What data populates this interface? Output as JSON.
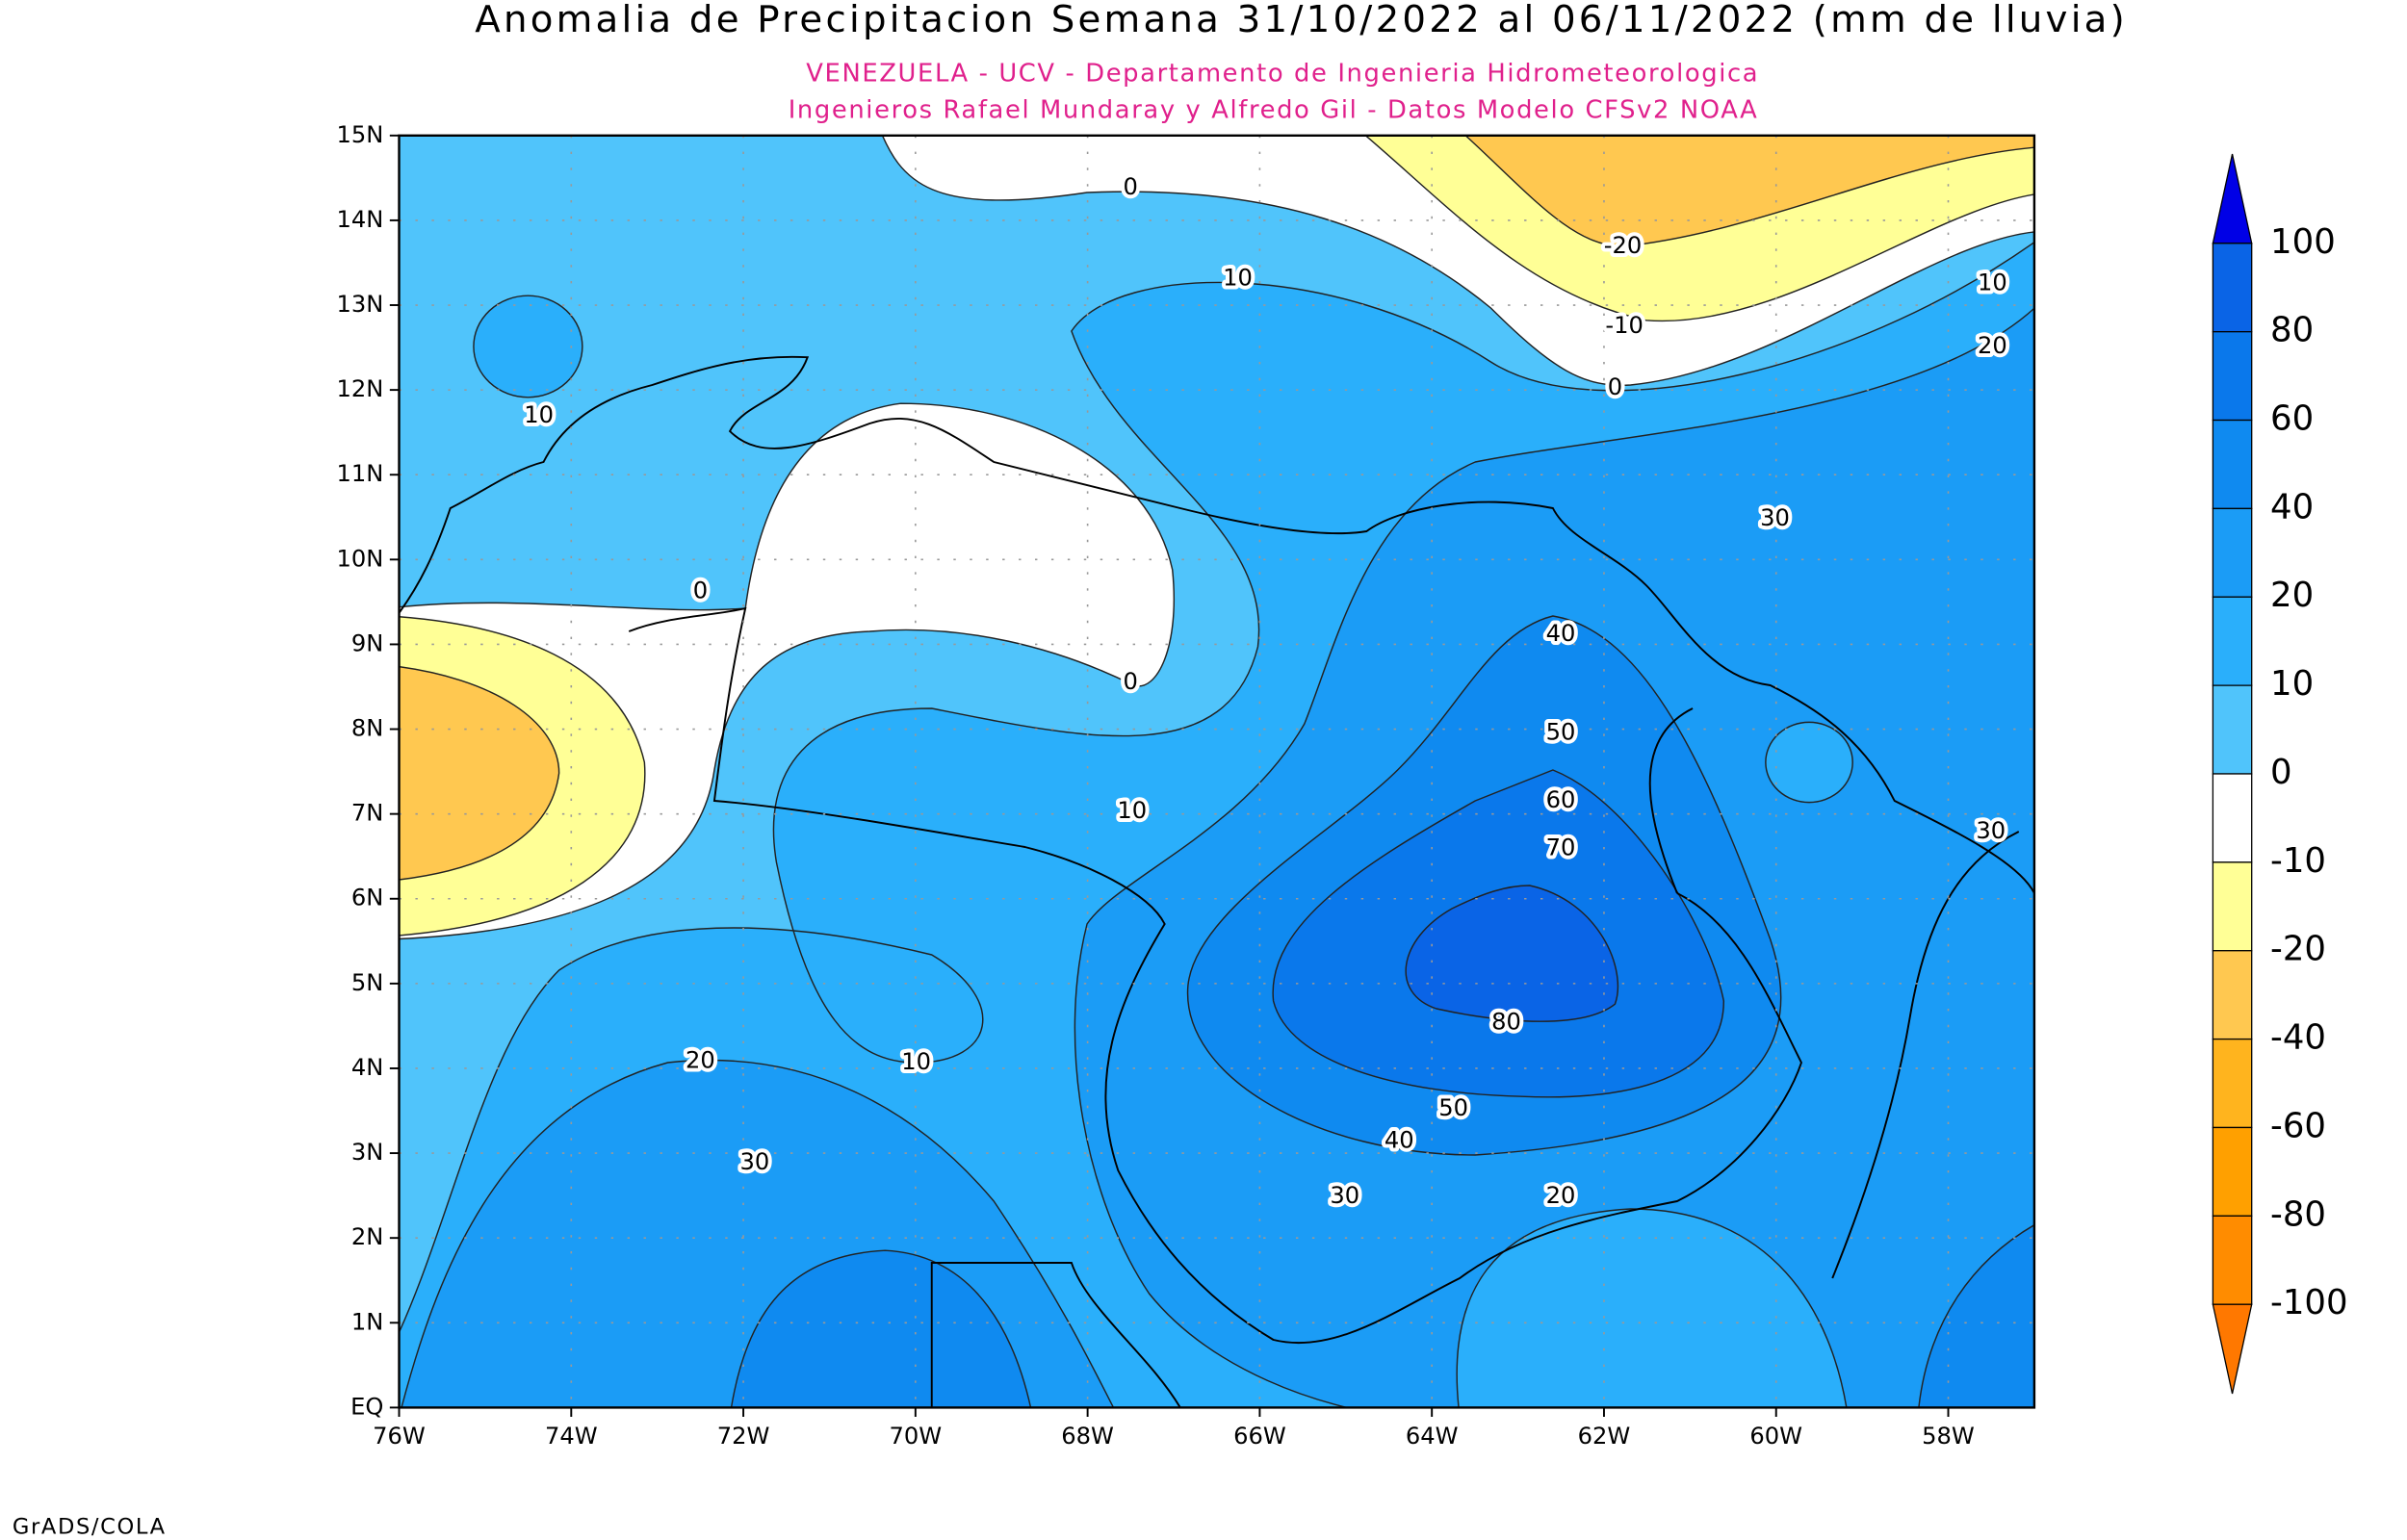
{
  "chart_data": {
    "type": "contour",
    "title": "Anomalia de Precipitacion Semana 31/10/2022 al 06/11/2022 (mm de lluvia)",
    "subtitle": [
      "VENEZUELA - UCV - Departamento de Ingenieria Hidrometeorologica",
      "Ingenieros Rafael Mundaray y Alfredo Gil - Datos Modelo CFSv2 NOAA"
    ],
    "credit": "GrADS/COLA",
    "xlim": [
      -76,
      -57
    ],
    "ylim": [
      0,
      15
    ],
    "xticks": [
      {
        "value": -76,
        "label": "76W"
      },
      {
        "value": -74,
        "label": "74W"
      },
      {
        "value": -72,
        "label": "72W"
      },
      {
        "value": -70,
        "label": "70W"
      },
      {
        "value": -68,
        "label": "68W"
      },
      {
        "value": -66,
        "label": "66W"
      },
      {
        "value": -64,
        "label": "64W"
      },
      {
        "value": -62,
        "label": "62W"
      },
      {
        "value": -60,
        "label": "60W"
      },
      {
        "value": -58,
        "label": "58W"
      }
    ],
    "yticks": [
      {
        "value": 0,
        "label": "EQ"
      },
      {
        "value": 1,
        "label": "1N"
      },
      {
        "value": 2,
        "label": "2N"
      },
      {
        "value": 3,
        "label": "3N"
      },
      {
        "value": 4,
        "label": "4N"
      },
      {
        "value": 5,
        "label": "5N"
      },
      {
        "value": 6,
        "label": "6N"
      },
      {
        "value": 7,
        "label": "7N"
      },
      {
        "value": 8,
        "label": "8N"
      },
      {
        "value": 9,
        "label": "9N"
      },
      {
        "value": 10,
        "label": "10N"
      },
      {
        "value": 11,
        "label": "11N"
      },
      {
        "value": 12,
        "label": "12N"
      },
      {
        "value": 13,
        "label": "13N"
      },
      {
        "value": 14,
        "label": "14N"
      },
      {
        "value": 15,
        "label": "15N"
      }
    ],
    "grid": true,
    "contour_labels": [
      0,
      10,
      -20,
      -10,
      0,
      10,
      20,
      10,
      30,
      0,
      40,
      0,
      50,
      60,
      10,
      30,
      70,
      80,
      20,
      10,
      50,
      40,
      30,
      30,
      20
    ],
    "colorbar": {
      "levels": [
        100,
        80,
        60,
        40,
        20,
        10,
        0,
        -10,
        -20,
        -40,
        -60,
        -80,
        -100
      ],
      "colors": [
        "#0000e6",
        "#0a64e6",
        "#0a78eb",
        "#0f8af0",
        "#1b9cf6",
        "#2aaffb",
        "#50c4fb",
        "#ffffff",
        "#ffff96",
        "#ffc850",
        "#ffb41e",
        "#ffa000",
        "#ff8c00",
        "#ff7800"
      ]
    }
  }
}
